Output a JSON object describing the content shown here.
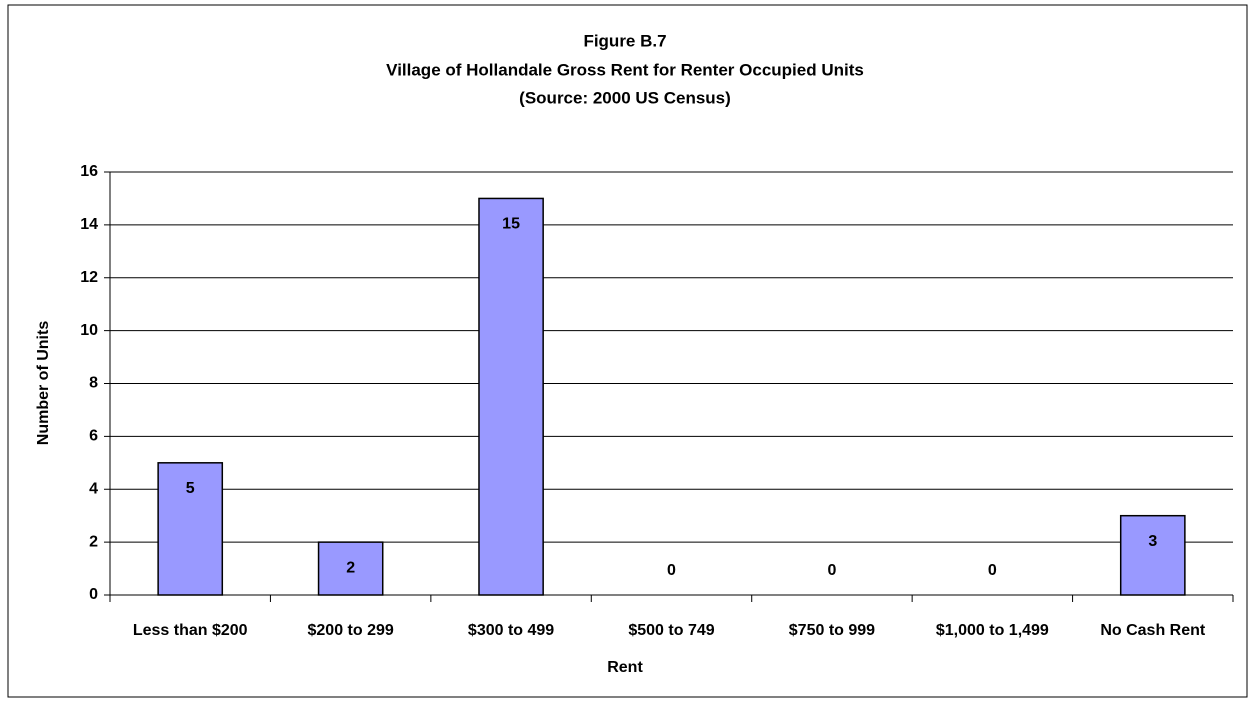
{
  "chart_data": {
    "type": "bar",
    "title": "Figure B.7",
    "subtitle": [
      "Village of Hollandale Gross Rent for Renter Occupied Units",
      "(Source: 2000 US Census)"
    ],
    "x_label": "Rent",
    "y_label": "Number of Units",
    "categories": [
      "Less than $200",
      "$200 to 299",
      "$300 to 499",
      "$500 to 749",
      "$750 to 999",
      "$1,000 to 1,499",
      "No Cash Rent"
    ],
    "values": [
      5,
      2,
      15,
      0,
      0,
      0,
      3
    ],
    "color": "#9999ff",
    "ylim": [
      0,
      16
    ],
    "yticks": [
      0,
      2,
      4,
      6,
      8,
      10,
      12,
      14,
      16
    ],
    "grid": true
  }
}
